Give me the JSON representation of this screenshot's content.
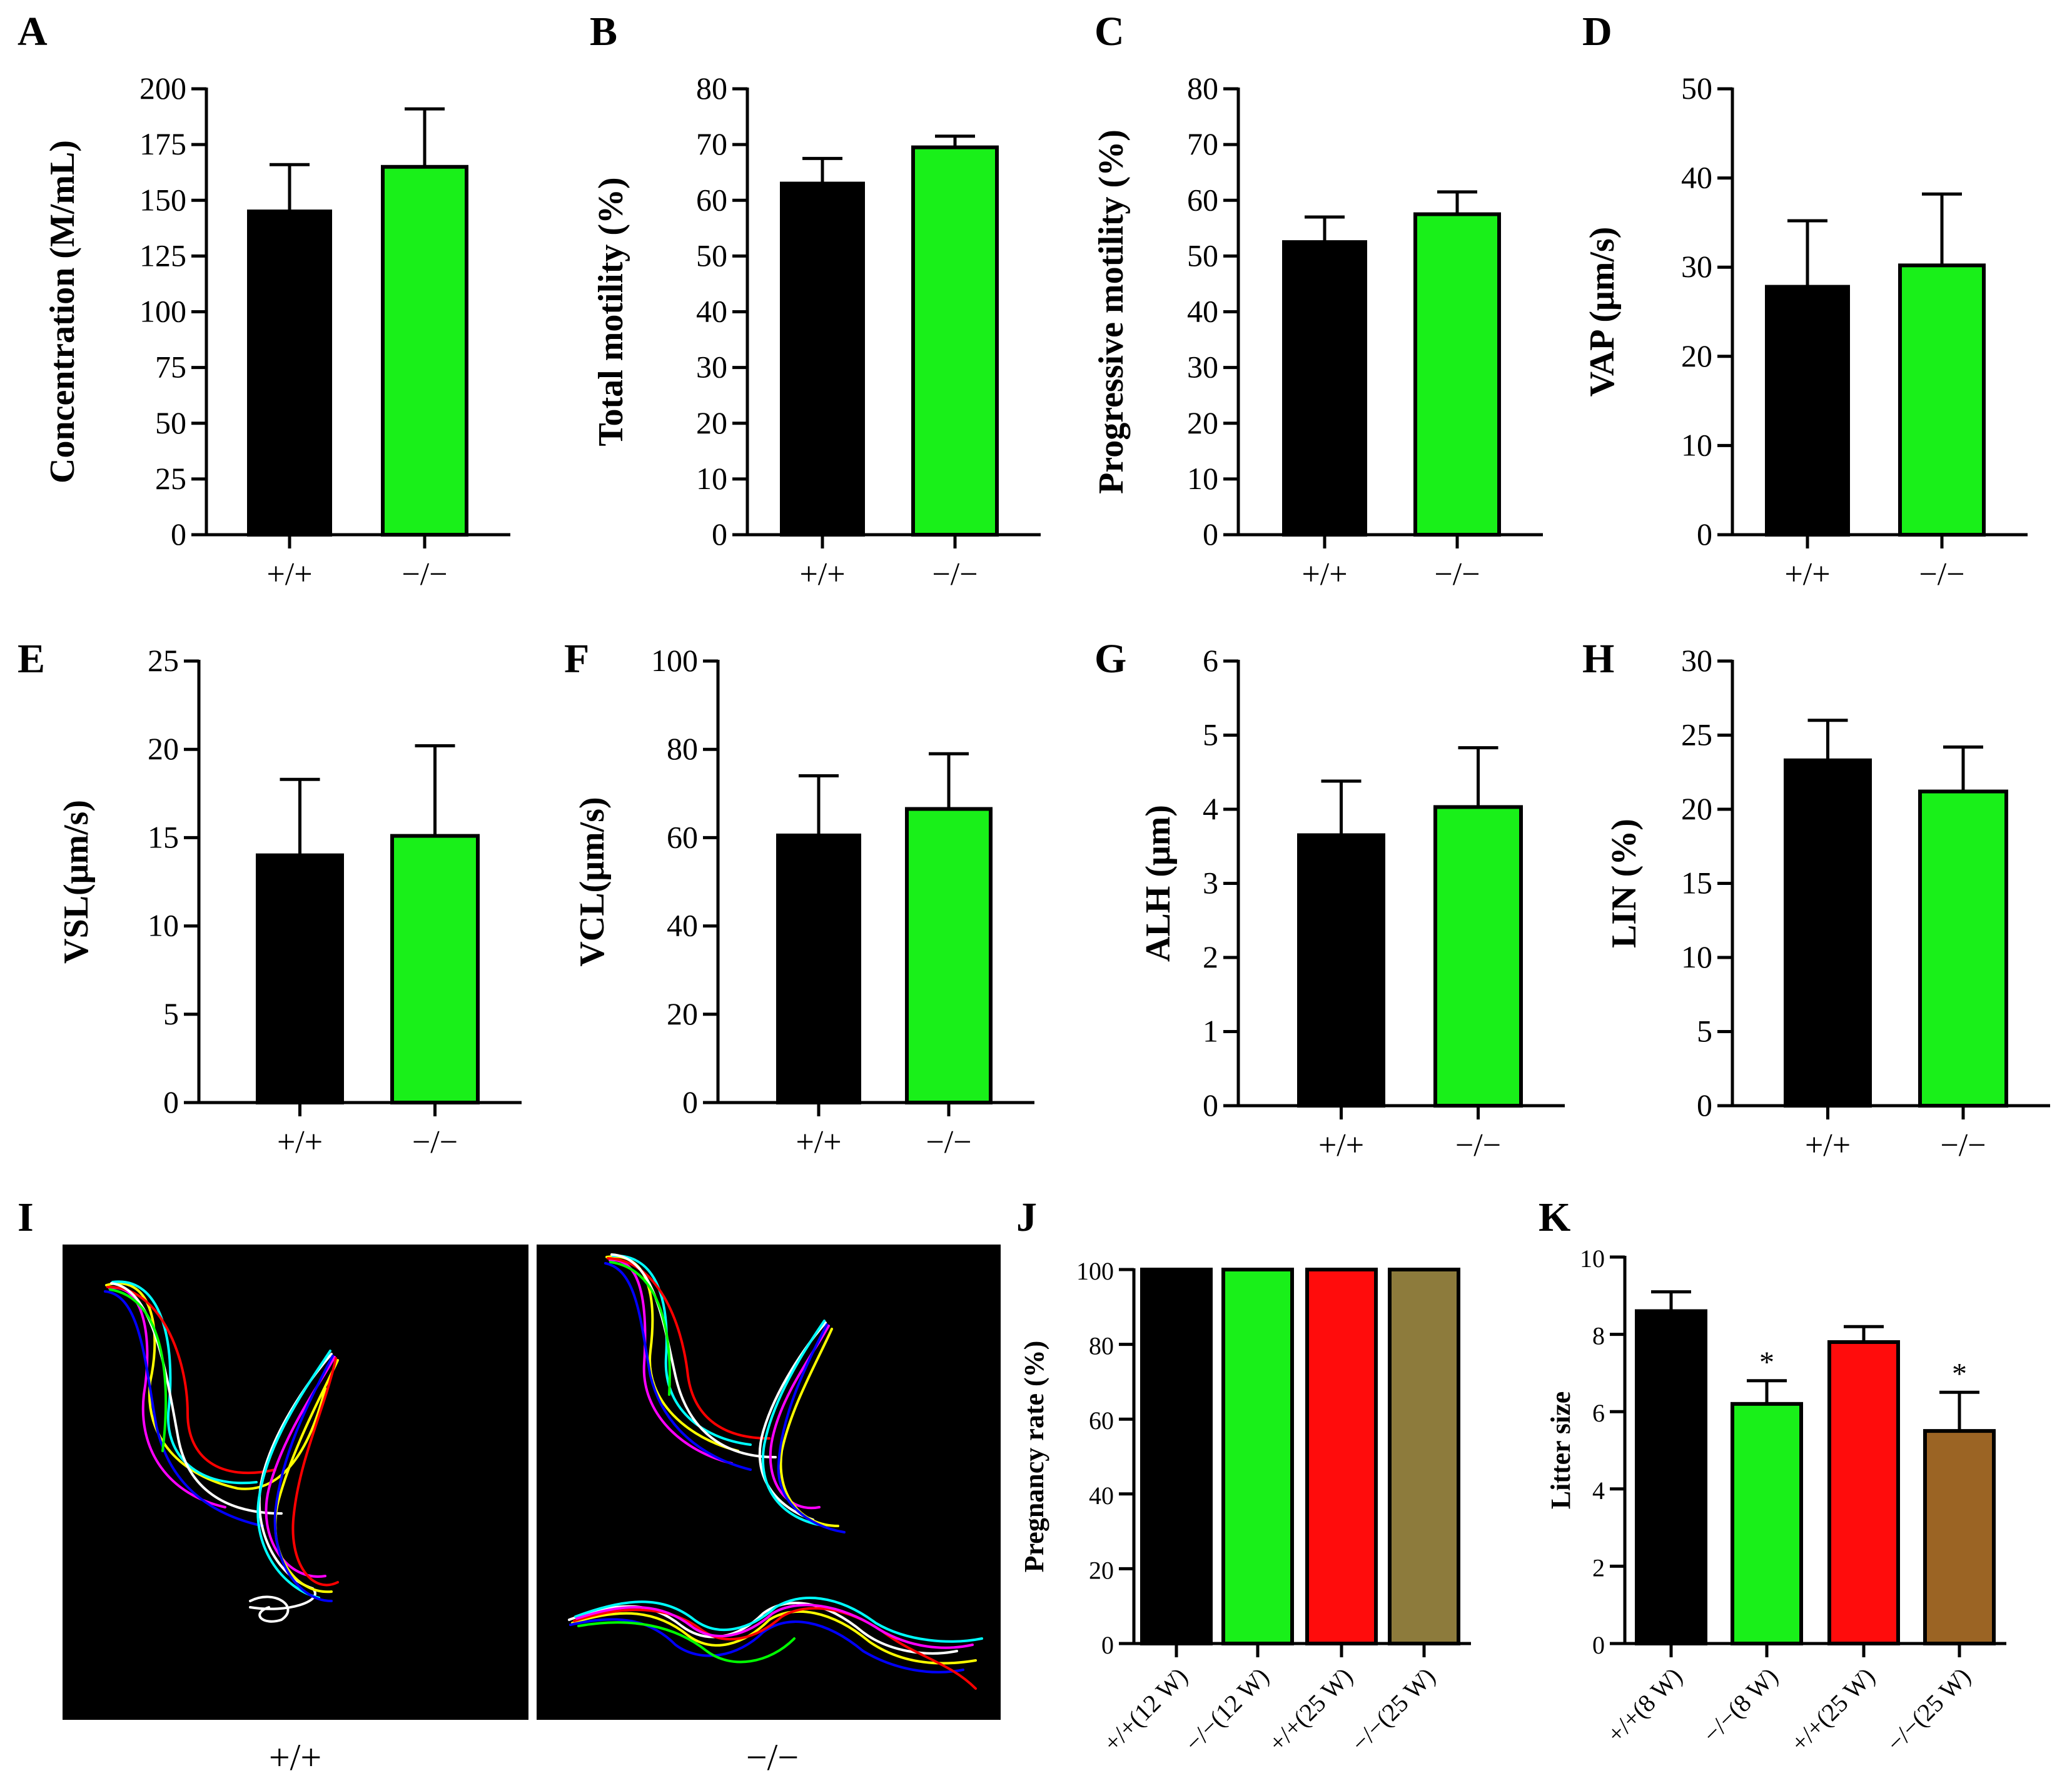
{
  "colors": {
    "black": "#000000",
    "green": "#19f019",
    "red": "#ff0c0c",
    "olive": "#8d7b3c",
    "brown": "#9b6424",
    "panel_bg": "#000000"
  },
  "chart_data": [
    {
      "panel": "A",
      "type": "bar",
      "ylabel": "Concentration (M/mL)",
      "ylim": [
        0,
        200
      ],
      "yticks": [
        0,
        25,
        50,
        75,
        100,
        125,
        150,
        175,
        200
      ],
      "categories": [
        "+/+",
        "−/−"
      ],
      "values": [
        145,
        165
      ],
      "errors": [
        21,
        26
      ],
      "colors": [
        "black",
        "green"
      ],
      "significance": [
        "",
        ""
      ]
    },
    {
      "panel": "B",
      "type": "bar",
      "ylabel": "Total motility (%)",
      "ylim": [
        0,
        80
      ],
      "yticks": [
        0,
        10,
        20,
        30,
        40,
        50,
        60,
        70,
        80
      ],
      "categories": [
        "+/+",
        "−/−"
      ],
      "values": [
        63,
        69.5
      ],
      "errors": [
        4.5,
        2
      ],
      "colors": [
        "black",
        "green"
      ],
      "significance": [
        "",
        ""
      ]
    },
    {
      "panel": "C",
      "type": "bar",
      "ylabel": "Progressive motility (%)",
      "ylim": [
        0,
        80
      ],
      "yticks": [
        0,
        10,
        20,
        30,
        40,
        50,
        60,
        70,
        80
      ],
      "categories": [
        "+/+",
        "−/−"
      ],
      "values": [
        52.5,
        57.5
      ],
      "errors": [
        4.5,
        4
      ],
      "colors": [
        "black",
        "green"
      ],
      "significance": [
        "",
        ""
      ]
    },
    {
      "panel": "D",
      "type": "bar",
      "ylabel": "VAP (μm/s)",
      "ylim": [
        0,
        50
      ],
      "yticks": [
        0,
        10,
        20,
        30,
        40,
        50
      ],
      "categories": [
        "+/+",
        "−/−"
      ],
      "values": [
        27.8,
        30.2
      ],
      "errors": [
        7.4,
        8
      ],
      "colors": [
        "black",
        "green"
      ],
      "significance": [
        "",
        ""
      ]
    },
    {
      "panel": "E",
      "type": "bar",
      "ylabel": "VSL(μm/s)",
      "ylim": [
        0,
        25
      ],
      "yticks": [
        0,
        5,
        10,
        15,
        20,
        25
      ],
      "categories": [
        "+/+",
        "−/−"
      ],
      "values": [
        14,
        15.1
      ],
      "errors": [
        4.3,
        5.1
      ],
      "colors": [
        "black",
        "green"
      ],
      "significance": [
        "",
        ""
      ]
    },
    {
      "panel": "F",
      "type": "bar",
      "ylabel": "VCL(μm/s)",
      "ylim": [
        0,
        100
      ],
      "yticks": [
        0,
        20,
        40,
        60,
        80,
        100
      ],
      "categories": [
        "+/+",
        "−/−"
      ],
      "values": [
        60.5,
        66.5
      ],
      "errors": [
        13.5,
        12.5
      ],
      "colors": [
        "black",
        "green"
      ],
      "significance": [
        "",
        ""
      ]
    },
    {
      "panel": "G",
      "type": "bar",
      "ylabel": "ALH (μm)",
      "ylim": [
        0,
        6
      ],
      "yticks": [
        0,
        1,
        2,
        3,
        4,
        5,
        6
      ],
      "categories": [
        "+/+",
        "−/−"
      ],
      "values": [
        3.65,
        4.03
      ],
      "errors": [
        0.73,
        0.8
      ],
      "colors": [
        "black",
        "green"
      ],
      "significance": [
        "",
        ""
      ]
    },
    {
      "panel": "H",
      "type": "bar",
      "ylabel": "LIN (%)",
      "ylim": [
        0,
        30
      ],
      "yticks": [
        0,
        5,
        10,
        15,
        20,
        25,
        30
      ],
      "categories": [
        "+/+",
        "−/−"
      ],
      "values": [
        23.3,
        21.2
      ],
      "errors": [
        2.7,
        3
      ],
      "colors": [
        "black",
        "green"
      ],
      "significance": [
        "",
        ""
      ]
    },
    {
      "panel": "J",
      "type": "bar",
      "ylabel": "Pregnancy rate (%)",
      "ylim": [
        0,
        100
      ],
      "yticks": [
        0,
        20,
        40,
        60,
        80,
        100
      ],
      "categories": [
        "+/+(12 W)",
        "−/−(12 W)",
        "+/+(25 W)",
        "−/−(25 W)"
      ],
      "values": [
        100,
        100,
        100,
        100
      ],
      "errors": [
        0,
        0,
        0,
        0
      ],
      "colors": [
        "black",
        "green",
        "red",
        "olive"
      ],
      "significance": [
        "",
        "",
        "",
        ""
      ]
    },
    {
      "panel": "K",
      "type": "bar",
      "ylabel": "Litter size",
      "ylim": [
        0,
        10
      ],
      "yticks": [
        0,
        2,
        4,
        6,
        8,
        10
      ],
      "categories": [
        "+/+(8 W)",
        "−/−(8 W)",
        "+/+(25 W)",
        "−/−(25 W)"
      ],
      "values": [
        8.6,
        6.2,
        7.8,
        5.5
      ],
      "errors": [
        0.5,
        0.6,
        0.4,
        1.0
      ],
      "colors": [
        "black",
        "green",
        "red",
        "brown"
      ],
      "significance": [
        "",
        "*",
        "",
        "*"
      ]
    }
  ],
  "panel_i": {
    "label": "I",
    "images": [
      {
        "caption": "+/+",
        "description": "sperm trajectory tracks, wild type"
      },
      {
        "caption": "−/−",
        "description": "sperm trajectory tracks, knockout"
      }
    ]
  }
}
